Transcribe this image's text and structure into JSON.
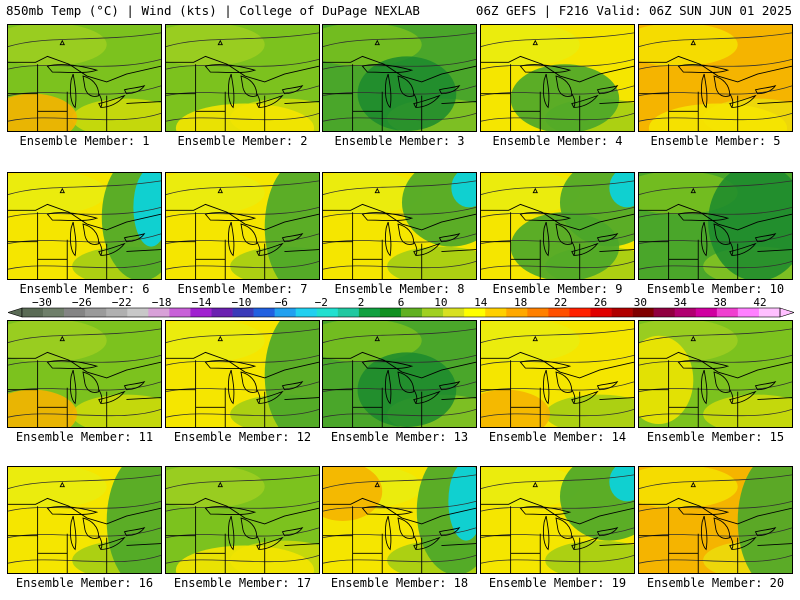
{
  "header": {
    "left": "850mb Temp (°C) | Wind (kts) | College of DuPage NEXLAB",
    "right": "06Z GEFS | F216 Valid: 06Z SUN JUN 01 2025"
  },
  "members": [
    {
      "label": "Ensemble Member: 1",
      "palette": "mid-green",
      "blobs": [
        "orange-sw"
      ]
    },
    {
      "label": "Ensemble Member: 2",
      "palette": "mid-green",
      "blobs": [
        "yellow-s"
      ]
    },
    {
      "label": "Ensemble Member: 3",
      "palette": "green-low",
      "blobs": [
        "dark-center"
      ]
    },
    {
      "label": "Ensemble Member: 4",
      "palette": "yellow",
      "blobs": [
        "green-center"
      ]
    },
    {
      "label": "Ensemble Member: 5",
      "palette": "orange",
      "blobs": [
        "yellow-s"
      ]
    },
    {
      "label": "Ensemble Member: 6",
      "palette": "yellow",
      "blobs": [
        "cyan-east"
      ]
    },
    {
      "label": "Ensemble Member: 7",
      "palette": "yellow",
      "blobs": [
        "green-east"
      ]
    },
    {
      "label": "Ensemble Member: 8",
      "palette": "yellow",
      "blobs": [
        "cyan-ne"
      ]
    },
    {
      "label": "Ensemble Member: 9",
      "palette": "yellow",
      "blobs": [
        "green-center",
        "cyan-ne"
      ]
    },
    {
      "label": "Ensemble Member: 10",
      "palette": "green-low",
      "blobs": [
        "dark-east"
      ]
    },
    {
      "label": "Ensemble Member: 11",
      "palette": "mid-green",
      "blobs": [
        "orange-sw"
      ]
    },
    {
      "label": "Ensemble Member: 12",
      "palette": "yellow",
      "blobs": [
        "green-east"
      ]
    },
    {
      "label": "Ensemble Member: 13",
      "palette": "green-low",
      "blobs": [
        "dark-center"
      ]
    },
    {
      "label": "Ensemble Member: 14",
      "palette": "yellow",
      "blobs": [
        "orange-sw"
      ]
    },
    {
      "label": "Ensemble Member: 15",
      "palette": "mid-green",
      "blobs": [
        "yellow-w"
      ]
    },
    {
      "label": "Ensemble Member: 16",
      "palette": "yellow",
      "blobs": [
        "green-east"
      ]
    },
    {
      "label": "Ensemble Member: 17",
      "palette": "mid-green",
      "blobs": [
        "yellow-s"
      ]
    },
    {
      "label": "Ensemble Member: 18",
      "palette": "yellow",
      "blobs": [
        "cyan-east",
        "orange-nw"
      ]
    },
    {
      "label": "Ensemble Member: 19",
      "palette": "yellow",
      "blobs": [
        "cyan-ne"
      ]
    },
    {
      "label": "Ensemble Member: 20",
      "palette": "orange",
      "blobs": [
        "green-east"
      ]
    }
  ],
  "colorbar": {
    "labels": [
      -30,
      -26,
      -22,
      -18,
      -14,
      -10,
      -6,
      -2,
      2,
      6,
      10,
      14,
      18,
      22,
      26,
      30,
      34,
      38,
      42
    ],
    "colors": [
      "#5a6b55",
      "#6f7f6a",
      "#848484",
      "#9a9a9a",
      "#b0b0b0",
      "#c8c8c8",
      "#d8a0d8",
      "#c860d8",
      "#a020d0",
      "#6a20b0",
      "#3a3ab8",
      "#2060e0",
      "#20a0f0",
      "#20d0f0",
      "#20e0d0",
      "#20c8a0",
      "#10a040",
      "#109020",
      "#60b020",
      "#a0d020",
      "#d8e020",
      "#ffff00",
      "#ffd000",
      "#ffa800",
      "#ff8000",
      "#ff5000",
      "#ff2000",
      "#e00000",
      "#b00000",
      "#800000",
      "#900040",
      "#b00070",
      "#d000a0",
      "#f040d0",
      "#ff80ff",
      "#ffc0ff"
    ],
    "min": -32,
    "max": 44
  },
  "colors": {
    "yellow": "#f5e600",
    "mid-green": "#7cc21e",
    "green-low": "#4aa62a",
    "orange": "#f5b400",
    "dark-green": "#1b8a2e",
    "cyan": "#10d0d0",
    "contour": "#303030",
    "coast": "#000000"
  }
}
